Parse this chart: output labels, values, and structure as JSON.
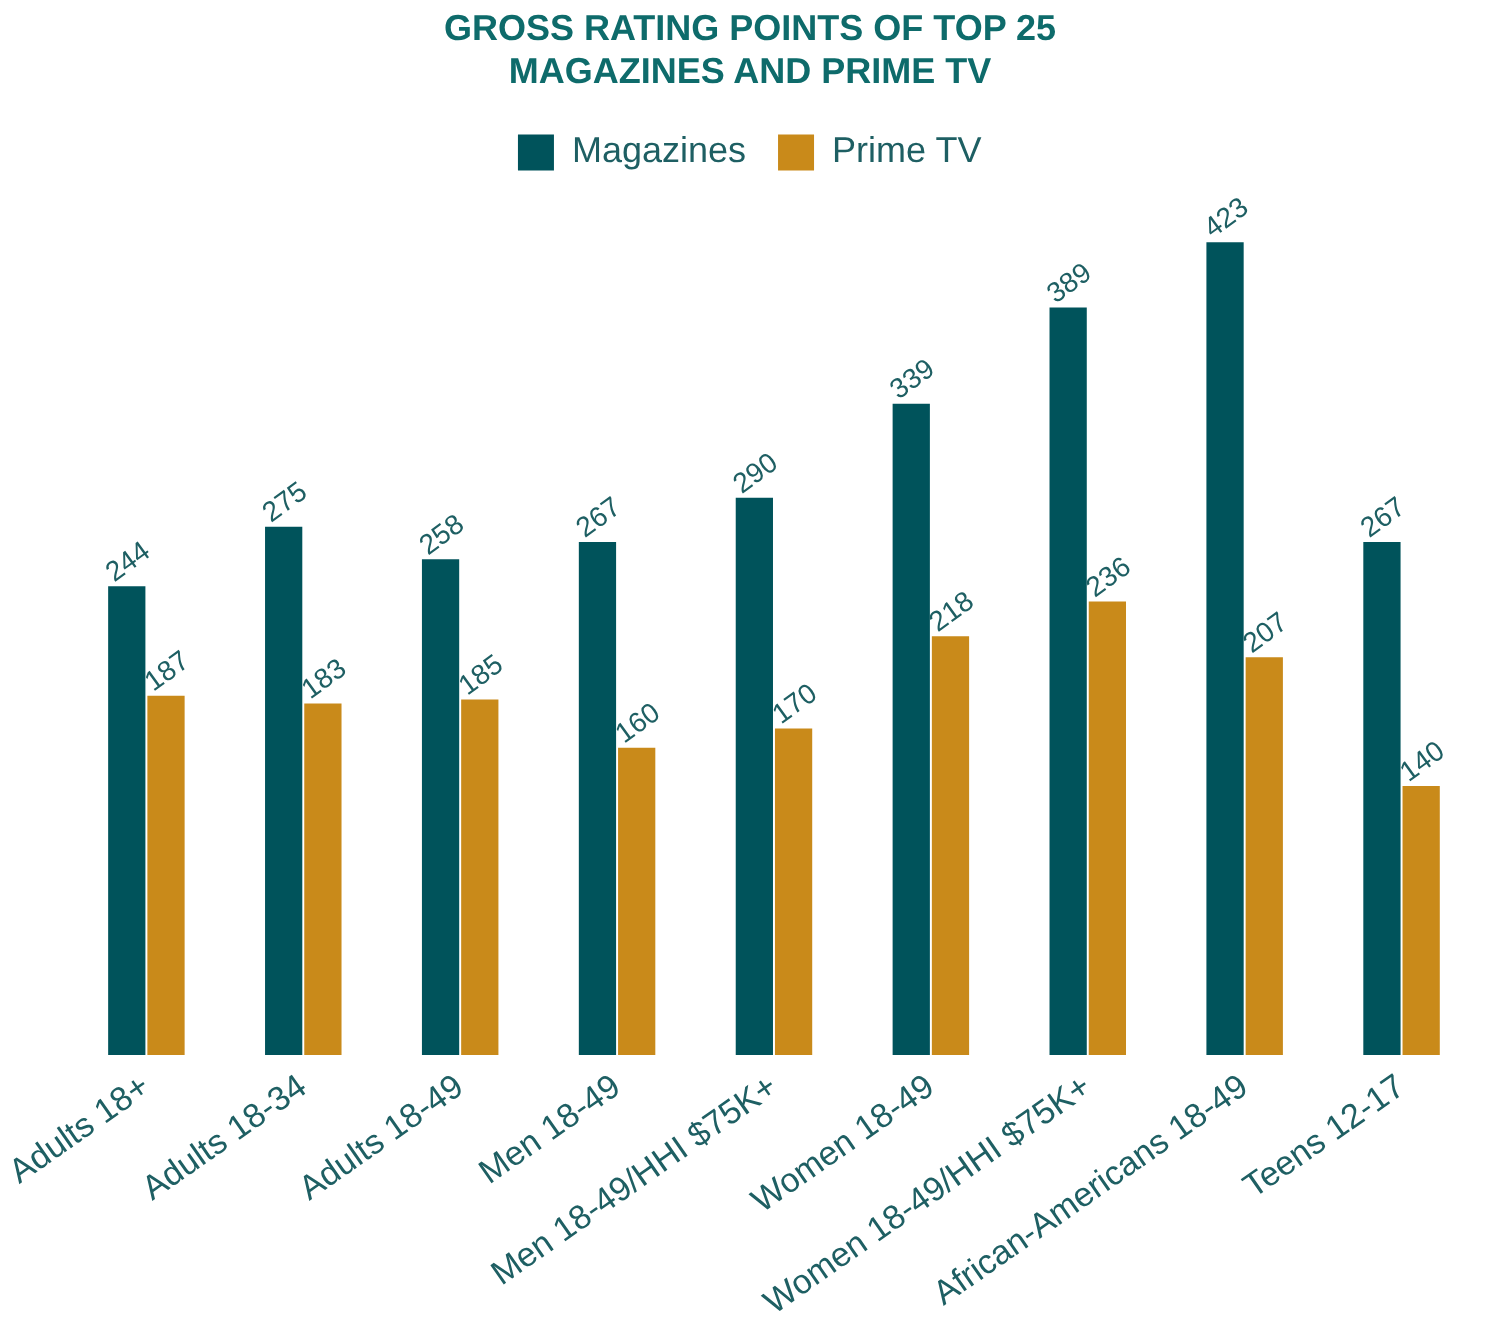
{
  "chart_data": {
    "type": "bar",
    "title": "GROSS RATING POINTS OF TOP 25\nMAGAZINES AND PRIME TV",
    "categories": [
      "Adults 18+",
      "Adults 18-34",
      "Adults 18-49",
      "Men 18-49",
      "Men 18-49/HHI $75K+",
      "Women 18-49",
      "Women 18-49/HHI $75K+",
      "African-Americans 18-49",
      "Teens 12-17"
    ],
    "series": [
      {
        "name": "Magazines",
        "color": "#00535b",
        "values": [
          244,
          275,
          258,
          267,
          290,
          339,
          389,
          423,
          267
        ]
      },
      {
        "name": "Prime TV",
        "color": "#c98a1a",
        "values": [
          187,
          183,
          185,
          160,
          170,
          218,
          236,
          207,
          140
        ]
      }
    ],
    "data_labels": true,
    "legend": "top",
    "grid": false,
    "relative": false
  }
}
